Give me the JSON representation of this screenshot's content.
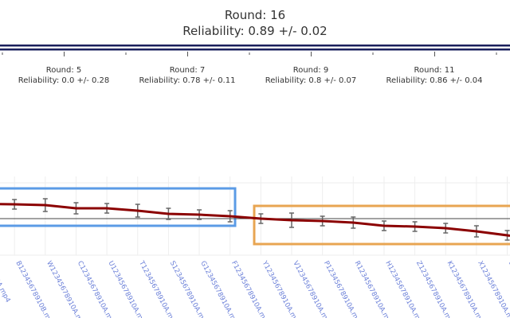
{
  "header": {
    "round": "Round: 16",
    "reliability": "Reliability: 0.89 +/- 0.02"
  },
  "timeline": [
    {
      "round": "Round: 5",
      "reliability": "Reliability: 0.0 +/- 0.28"
    },
    {
      "round": "Round: 7",
      "reliability": "Reliability: 0.78 +/- 0.11"
    },
    {
      "round": "Round: 9",
      "reliability": "Reliability: 0.8 +/- 0.07"
    },
    {
      "round": "Round: 11",
      "reliability": "Reliability: 0.86 +/- 0.04"
    }
  ],
  "colors": {
    "line": "#8b0000",
    "error": "#666666",
    "baseline": "#444444",
    "box_top": "#5b9be6",
    "box_bottom": "#e8a552",
    "tick_label": "#6a7fd8",
    "timeline": "#1a1f5c"
  },
  "chart_data": {
    "type": "line",
    "x": [
      "…8910A.mp4",
      "B12345678910B.mp4",
      "W12345678910A.mp4",
      "C12345678910A.mp4",
      "U12345678910A.mp4",
      "T12345678910A.mp4",
      "S12345678910A.mp4",
      "G12345678910A.mp4",
      "F12345678910A.mp4",
      "Y12345678910A.mp4",
      "V12345678910A.mp4",
      "P12345678910A.mp4",
      "R12345678910A.mp4",
      "H12345678910A.mp4",
      "Z12345678910A.mp4",
      "K12345678910A.mp4",
      "X12345678910A.mp4",
      "B1…"
    ],
    "values": [
      null,
      1.8,
      1.7,
      1.3,
      1.3,
      1.0,
      0.6,
      0.5,
      0.3,
      0.0,
      -0.2,
      -0.3,
      -0.5,
      -0.9,
      -1.0,
      -1.2,
      -1.6,
      -2.1
    ],
    "errors": [
      null,
      0.6,
      0.8,
      0.7,
      0.6,
      0.8,
      0.7,
      0.6,
      0.7,
      0.6,
      0.9,
      0.6,
      0.7,
      0.6,
      0.6,
      0.6,
      0.7,
      0.6
    ],
    "baseline": 0,
    "ylim": [
      -4.6,
      4.5
    ],
    "grid": true
  }
}
